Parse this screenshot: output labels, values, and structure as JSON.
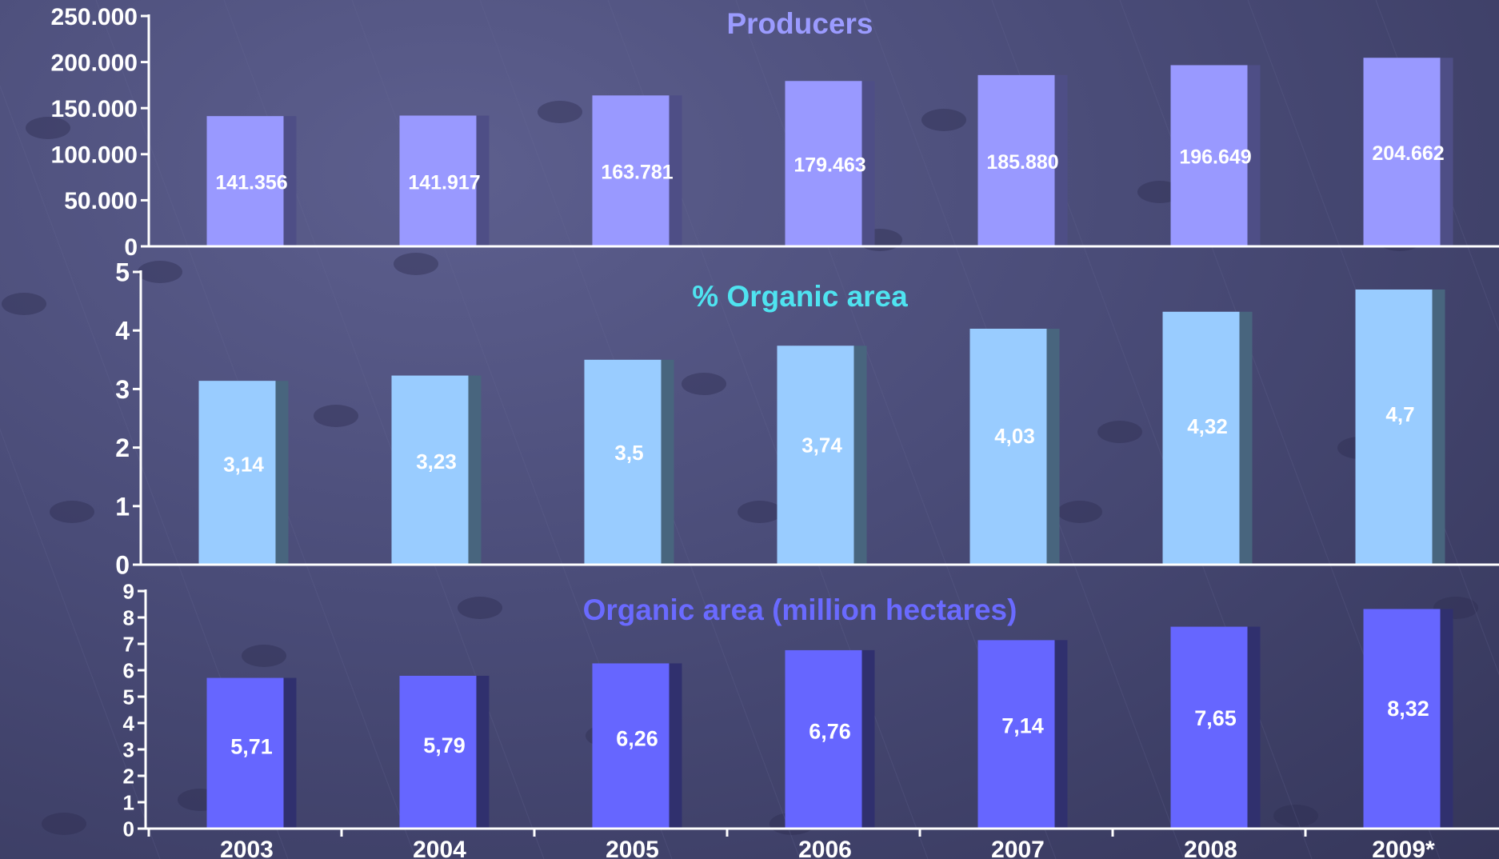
{
  "chart_data": [
    {
      "type": "bar",
      "title": "Producers",
      "categories": [
        "2003",
        "2004",
        "2005",
        "2006",
        "2007",
        "2008",
        "2009*"
      ],
      "values": [
        141356,
        141917,
        163781,
        179463,
        185880,
        196649,
        204662
      ],
      "value_labels": [
        "141.356",
        "141.917",
        "163.781",
        "179.463",
        "185.880",
        "196.649",
        "204.662"
      ],
      "ylim": [
        0,
        250000
      ],
      "yticks": [
        0,
        50000,
        100000,
        150000,
        200000,
        250000
      ],
      "ytick_labels": [
        "0",
        "50.000",
        "100.000",
        "150.000",
        "200.000",
        "250.000"
      ],
      "grid": false,
      "colors": {
        "bar": "#9999ff",
        "side": "#4e4e86",
        "title": "#9b9bff"
      }
    },
    {
      "type": "bar",
      "title": "% Organic area",
      "categories": [
        "2003",
        "2004",
        "2005",
        "2006",
        "2007",
        "2008",
        "2009*"
      ],
      "values": [
        3.14,
        3.23,
        3.5,
        3.74,
        4.03,
        4.32,
        4.7
      ],
      "value_labels": [
        "3,14",
        "3,23",
        "3,5",
        "3,74",
        "4,03",
        "4,32",
        "4,7"
      ],
      "ylim": [
        0,
        5
      ],
      "yticks": [
        0,
        1,
        2,
        3,
        4,
        5
      ],
      "ytick_labels": [
        "0",
        "1",
        "2",
        "3",
        "4",
        "5"
      ],
      "grid": false,
      "colors": {
        "bar": "#99ccff",
        "side": "#48657e",
        "title": "#4fe3f0"
      }
    },
    {
      "type": "bar",
      "title": "Organic area (million hectares)",
      "categories": [
        "2003",
        "2004",
        "2005",
        "2006",
        "2007",
        "2008",
        "2009*"
      ],
      "values": [
        5.71,
        5.79,
        6.26,
        6.76,
        7.14,
        7.65,
        8.32
      ],
      "value_labels": [
        "5,71",
        "5,79",
        "6,26",
        "6,76",
        "7,14",
        "7,65",
        "8,32"
      ],
      "ylim": [
        0,
        9
      ],
      "yticks": [
        0,
        1,
        2,
        3,
        4,
        5,
        6,
        7,
        8,
        9
      ],
      "ytick_labels": [
        "0",
        "1",
        "2",
        "3",
        "4",
        "5",
        "6",
        "7",
        "8",
        "9"
      ],
      "grid": false,
      "colors": {
        "bar": "#6666ff",
        "side": "#30306e",
        "title": "#6a6aff"
      }
    }
  ]
}
